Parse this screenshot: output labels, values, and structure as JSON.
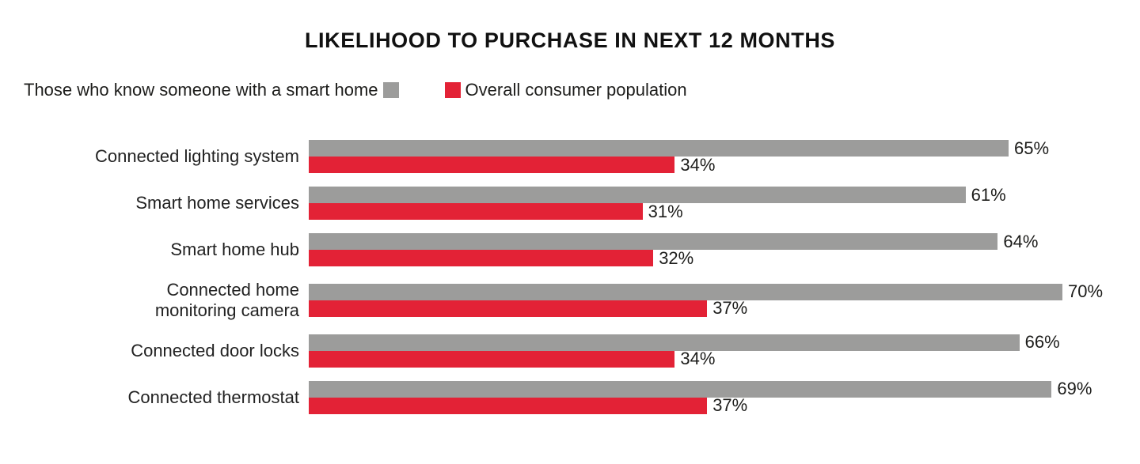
{
  "chart_data": {
    "type": "bar",
    "orientation": "horizontal",
    "title": "LIKELIHOOD TO PURCHASE IN NEXT 12 MONTHS",
    "categories": [
      "Connected lighting system",
      "Smart home services",
      "Smart home hub",
      "Connected home\nmonitoring camera",
      "Connected door locks",
      "Connected thermostat"
    ],
    "series": [
      {
        "name": "Those who know someone with a smart home",
        "color": "#9c9c9b",
        "values": [
          65,
          61,
          64,
          70,
          66,
          69
        ]
      },
      {
        "name": "Overall consumer population",
        "color": "#e32236",
        "values": [
          34,
          31,
          32,
          37,
          34,
          37
        ]
      }
    ],
    "value_suffix": "%",
    "xlim": [
      0,
      70
    ],
    "legend_position": "top",
    "grid": false
  }
}
